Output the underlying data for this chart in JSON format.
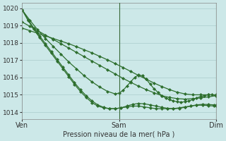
{
  "background_color": "#cce8e8",
  "grid_color": "#aacccc",
  "line_color": "#2d6e2d",
  "ylim": [
    1013.6,
    1020.3
  ],
  "yticks": [
    1014,
    1015,
    1016,
    1017,
    1018,
    1019,
    1020
  ],
  "xtick_labels": [
    "Ven",
    "Sam",
    "Dim"
  ],
  "xtick_positions": [
    0,
    0.5,
    1.0
  ],
  "xlabel": "Pression niveau de la mer( hPa )",
  "vline_positions": [
    0.5,
    1.0
  ],
  "series": [
    {
      "x": [
        0.0,
        0.03,
        0.06,
        0.09,
        0.12,
        0.15,
        0.18,
        0.21,
        0.24,
        0.27,
        0.3,
        0.33,
        0.36,
        0.39,
        0.42,
        0.45,
        0.48,
        0.51,
        0.54,
        0.57,
        0.6,
        0.63,
        0.66,
        0.69,
        0.72,
        0.75,
        0.78,
        0.81,
        0.84,
        0.87,
        0.9,
        0.93,
        0.96,
        0.99,
        1.0
      ],
      "y": [
        1019.9,
        1019.3,
        1018.8,
        1018.3,
        1017.85,
        1017.4,
        1016.95,
        1016.5,
        1016.05,
        1015.6,
        1015.2,
        1014.85,
        1014.55,
        1014.35,
        1014.25,
        1014.2,
        1014.2,
        1014.25,
        1014.3,
        1014.35,
        1014.35,
        1014.3,
        1014.25,
        1014.2,
        1014.2,
        1014.2,
        1014.2,
        1014.25,
        1014.3,
        1014.35,
        1014.4,
        1014.4,
        1014.38,
        1014.35,
        1014.35
      ]
    },
    {
      "x": [
        0.0,
        0.03,
        0.06,
        0.09,
        0.12,
        0.15,
        0.18,
        0.21,
        0.24,
        0.27,
        0.3,
        0.33,
        0.36,
        0.39,
        0.42,
        0.45,
        0.48,
        0.51,
        0.54,
        0.57,
        0.6,
        0.63,
        0.66,
        0.69,
        0.72,
        0.75,
        0.78,
        0.81,
        0.84,
        0.87,
        0.9,
        0.93,
        0.96,
        0.99,
        1.0
      ],
      "y": [
        1019.9,
        1019.35,
        1018.85,
        1018.4,
        1017.95,
        1017.5,
        1017.05,
        1016.6,
        1016.15,
        1015.7,
        1015.3,
        1014.95,
        1014.65,
        1014.42,
        1014.28,
        1014.2,
        1014.2,
        1014.25,
        1014.35,
        1014.45,
        1014.5,
        1014.48,
        1014.42,
        1014.35,
        1014.28,
        1014.22,
        1014.2,
        1014.22,
        1014.28,
        1014.35,
        1014.42,
        1014.45,
        1014.44,
        1014.42,
        1014.4
      ]
    },
    {
      "x": [
        0.0,
        0.04,
        0.08,
        0.12,
        0.16,
        0.2,
        0.24,
        0.28,
        0.32,
        0.36,
        0.4,
        0.44,
        0.48,
        0.5,
        0.52,
        0.54,
        0.56,
        0.58,
        0.6,
        0.62,
        0.64,
        0.66,
        0.68,
        0.7,
        0.72,
        0.74,
        0.76,
        0.78,
        0.8,
        0.82,
        0.84,
        0.86,
        0.88,
        0.9,
        0.92,
        0.94,
        0.96,
        0.98,
        1.0
      ],
      "y": [
        1019.9,
        1019.3,
        1018.75,
        1018.25,
        1017.8,
        1017.35,
        1016.9,
        1016.5,
        1016.1,
        1015.75,
        1015.45,
        1015.2,
        1015.05,
        1015.1,
        1015.25,
        1015.5,
        1015.75,
        1016.0,
        1016.15,
        1016.1,
        1015.9,
        1015.62,
        1015.35,
        1015.15,
        1014.95,
        1014.82,
        1014.72,
        1014.65,
        1014.6,
        1014.58,
        1014.6,
        1014.65,
        1014.72,
        1014.82,
        1014.9,
        1014.95,
        1015.0,
        1015.0,
        1014.95
      ]
    },
    {
      "x": [
        0.0,
        0.04,
        0.08,
        0.12,
        0.16,
        0.2,
        0.24,
        0.28,
        0.32,
        0.36,
        0.4,
        0.44,
        0.48,
        0.52,
        0.56,
        0.6,
        0.64,
        0.68,
        0.72,
        0.76,
        0.8,
        0.84,
        0.88,
        0.92,
        0.96,
        1.0
      ],
      "y": [
        1019.2,
        1018.95,
        1018.7,
        1018.45,
        1018.2,
        1017.95,
        1017.7,
        1017.45,
        1017.2,
        1016.95,
        1016.7,
        1016.45,
        1016.2,
        1015.95,
        1015.72,
        1015.5,
        1015.3,
        1015.12,
        1014.95,
        1014.85,
        1014.78,
        1014.75,
        1014.78,
        1014.82,
        1014.88,
        1014.95
      ]
    },
    {
      "x": [
        0.0,
        0.04,
        0.08,
        0.12,
        0.16,
        0.2,
        0.24,
        0.28,
        0.32,
        0.36,
        0.4,
        0.44,
        0.48,
        0.52,
        0.56,
        0.6,
        0.64,
        0.68,
        0.72,
        0.76,
        0.8,
        0.84,
        0.88,
        0.92,
        0.96,
        1.0
      ],
      "y": [
        1018.85,
        1018.7,
        1018.55,
        1018.4,
        1018.25,
        1018.1,
        1017.95,
        1017.78,
        1017.6,
        1017.42,
        1017.22,
        1017.02,
        1016.8,
        1016.58,
        1016.35,
        1016.12,
        1015.9,
        1015.68,
        1015.48,
        1015.3,
        1015.15,
        1015.05,
        1015.0,
        1015.0,
        1015.0,
        1015.0
      ]
    }
  ]
}
